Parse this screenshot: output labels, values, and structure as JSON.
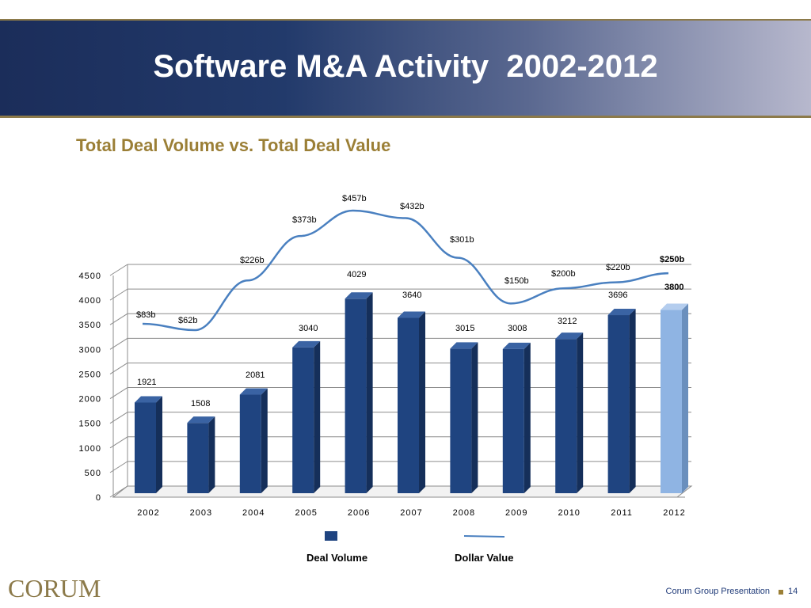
{
  "slide": {
    "title": "Software M&A Activity  2002-2012",
    "subtitle": "Total Deal Volume vs. Total Deal Value",
    "logo_text": "CORUM",
    "footer_text": "Corum Group Presentation",
    "page_number": "14"
  },
  "colors": {
    "bar": "#1f4480",
    "bar_highlight": "#8fb4e3",
    "line": "#4a80c0",
    "title_bg": "#1b2d5a",
    "subtitle": "#9b7f36"
  },
  "chart_data": {
    "type": "bar",
    "categories": [
      "2002",
      "2003",
      "2004",
      "2005",
      "2006",
      "2007",
      "2008",
      "2009",
      "2010",
      "2011",
      "2012"
    ],
    "series": [
      {
        "name": "Deal Volume",
        "chart": "bar",
        "values": [
          1921,
          1508,
          2081,
          3040,
          4029,
          3640,
          3015,
          3008,
          3212,
          3696,
          3800
        ],
        "labels": [
          "1921",
          "1508",
          "2081",
          "3040",
          "4029",
          "3640",
          "3015",
          "3008",
          "3212",
          "3696",
          "3800"
        ],
        "highlight_last": true
      },
      {
        "name": "Dollar Value",
        "chart": "line",
        "values": [
          83,
          62,
          226,
          373,
          457,
          432,
          301,
          150,
          200,
          220,
          250
        ],
        "labels": [
          "$83b",
          "$62b",
          "$226b",
          "$373b",
          "$457b",
          "$432b",
          "$301b",
          "$150b",
          "$200b",
          "$220b",
          "$250b"
        ]
      }
    ],
    "yticks": [
      "0",
      "500",
      "1000",
      "1500",
      "2000",
      "2500",
      "3000",
      "3500",
      "4000",
      "4500"
    ],
    "ylim": [
      0,
      4500
    ],
    "grid": true,
    "legend": "bottom-center"
  }
}
